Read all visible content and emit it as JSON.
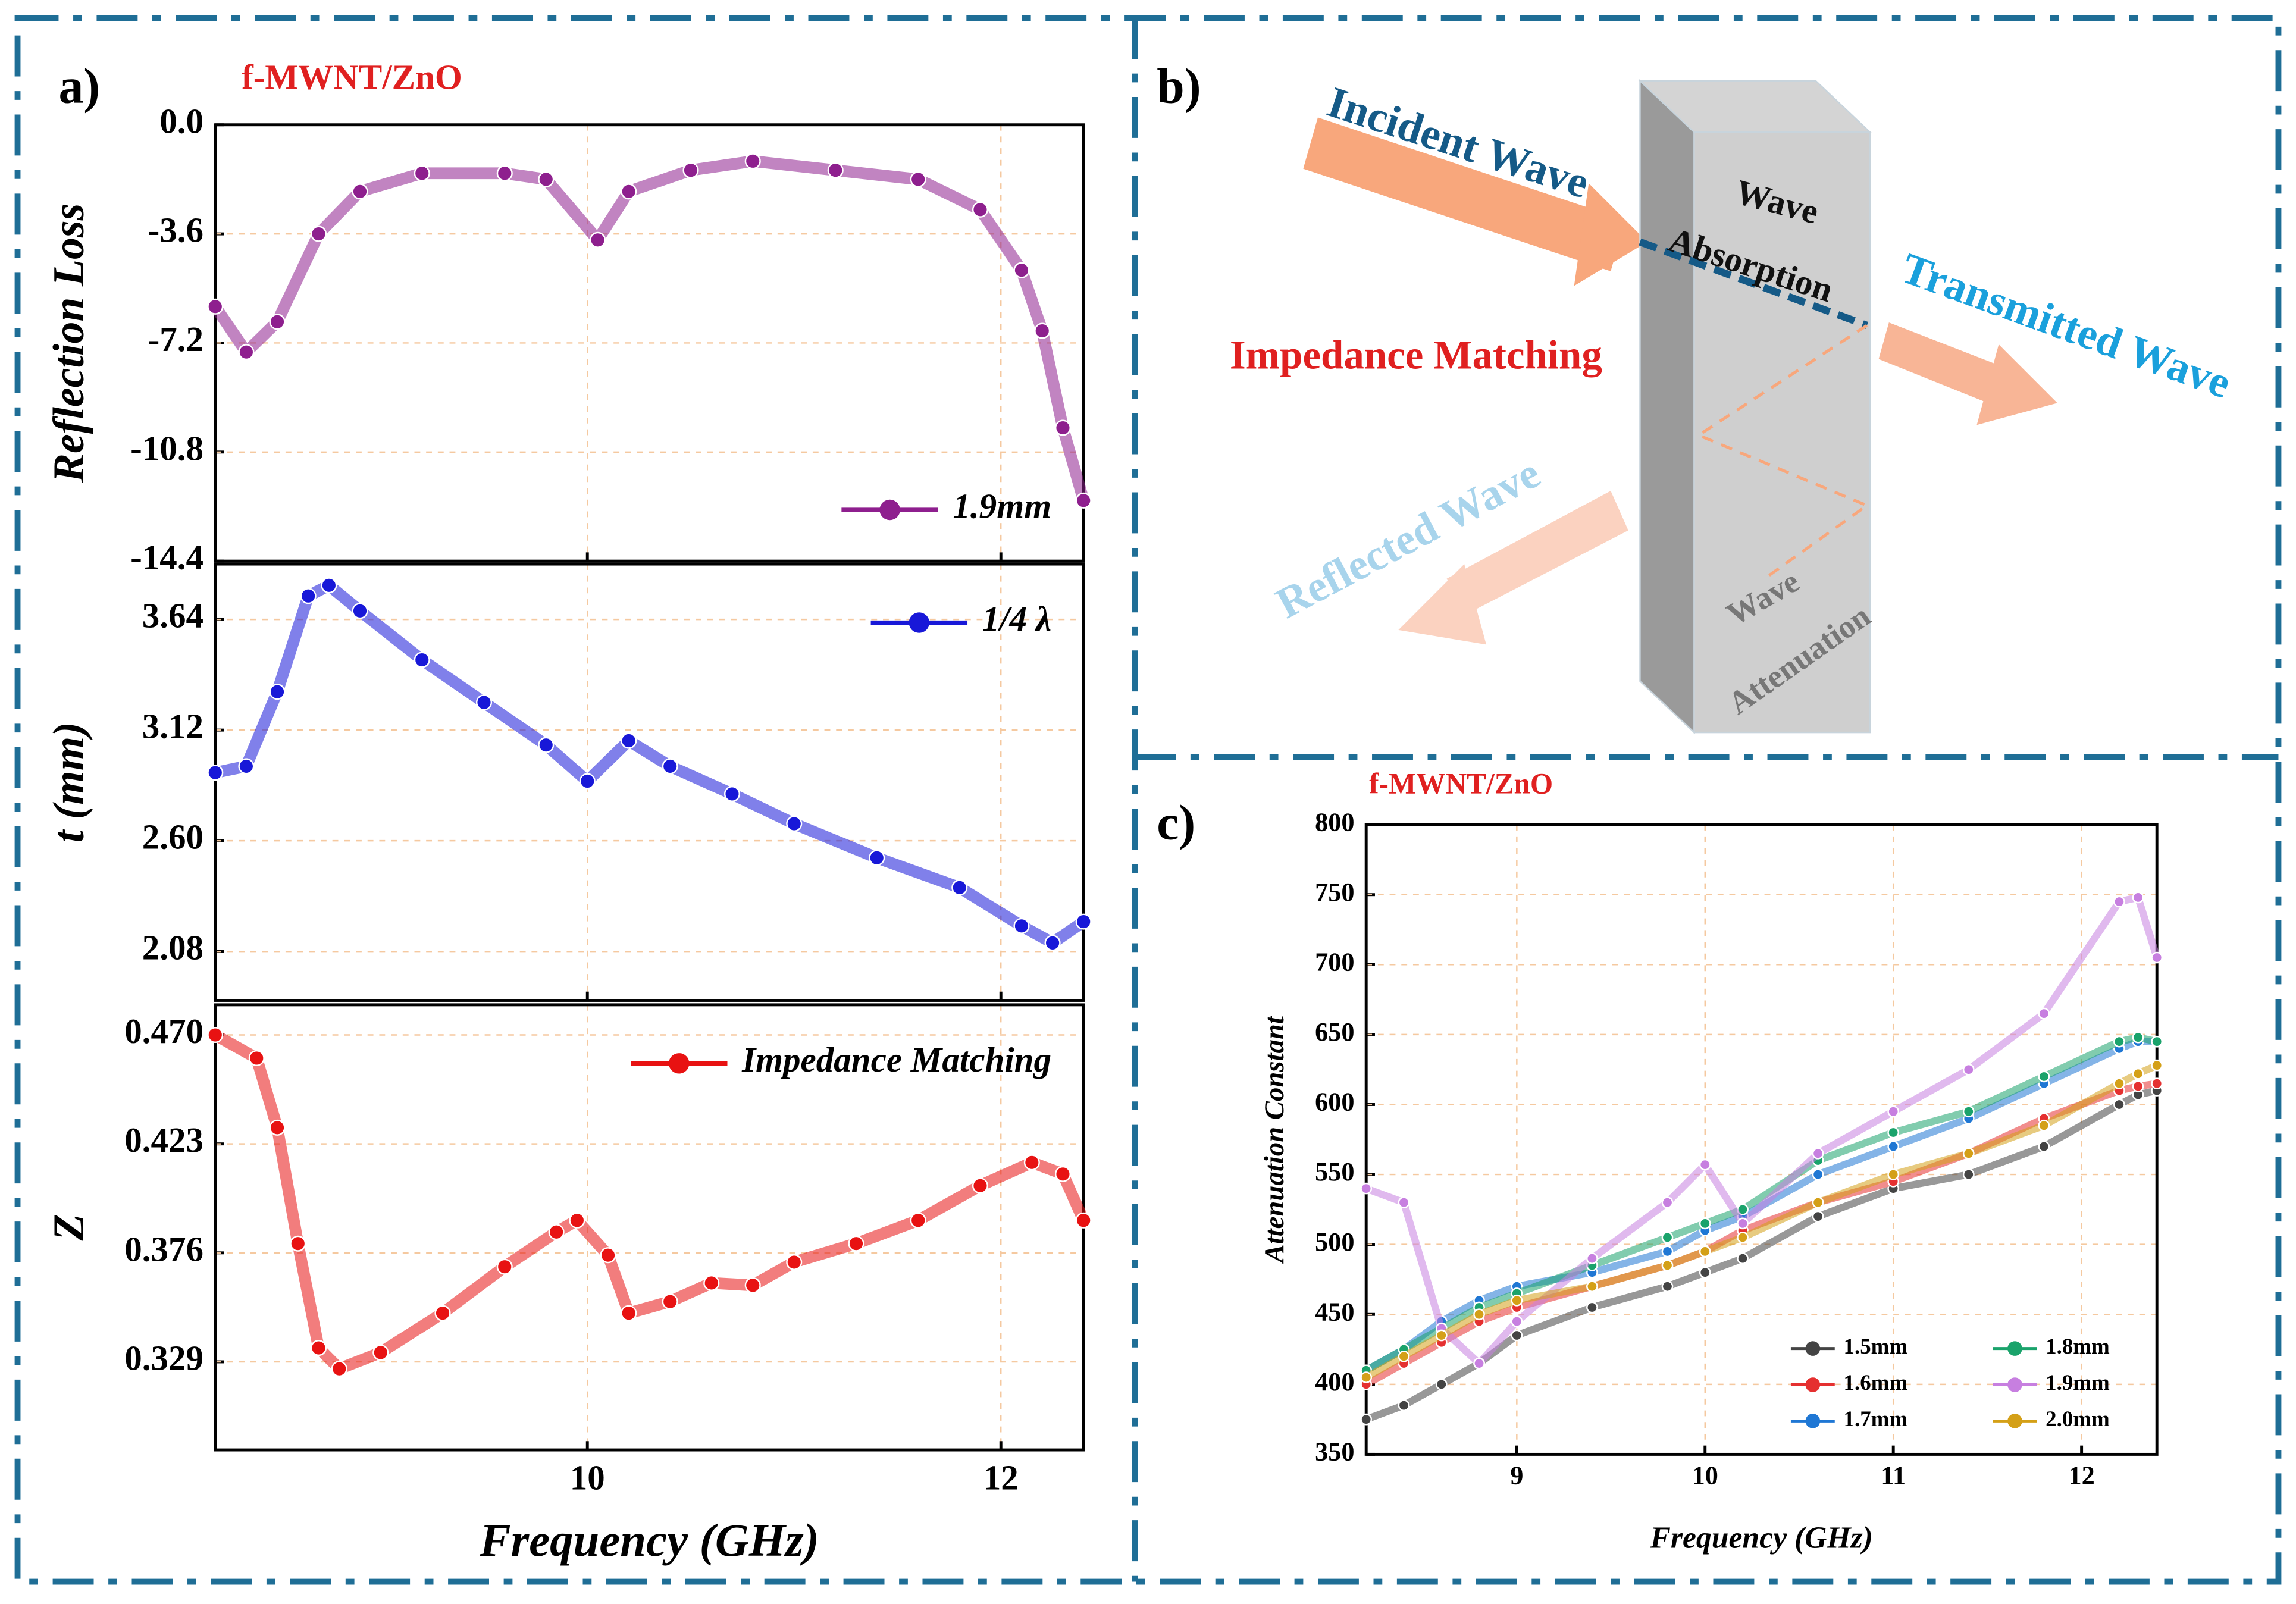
{
  "chart_data": [
    {
      "type": "line",
      "panel_label": "a)",
      "title": "f-MWNT/ZnO",
      "ylabel": "Reflection Loss",
      "x": [
        8.2,
        8.35,
        8.5,
        8.7,
        8.9,
        9.2,
        9.6,
        9.8,
        10.05,
        10.2,
        10.5,
        10.8,
        11.2,
        11.6,
        11.9,
        12.1,
        12.2,
        12.3,
        12.4
      ],
      "xlim": [
        8.2,
        12.4
      ],
      "ylim": [
        -14.4,
        0
      ],
      "yticks": [
        {
          "value": 0,
          "label": "0.0"
        },
        -3.6,
        -7.2,
        -10.8,
        -14.4
      ],
      "grid": true,
      "legend_loc": "lower right",
      "series": [
        {
          "name": "1.9mm",
          "color": "#8e1f8e",
          "values": [
            -6,
            -7.5,
            -6.5,
            -3.6,
            -2.2,
            -1.6,
            -1.6,
            -1.8,
            -3.8,
            -2.2,
            -1.5,
            -1.2,
            -1.5,
            -1.8,
            -2.8,
            -4.8,
            -6.8,
            -10,
            -12.4
          ]
        }
      ]
    },
    {
      "type": "line",
      "ylabel": "t (mm)",
      "x": [
        8.2,
        8.35,
        8.5,
        8.65,
        8.75,
        8.9,
        9.2,
        9.5,
        9.8,
        10.0,
        10.2,
        10.4,
        10.7,
        11.0,
        11.4,
        11.8,
        12.1,
        12.25,
        12.4
      ],
      "xlim": [
        8.2,
        12.4
      ],
      "ylim": [
        1.85,
        3.9
      ],
      "yticks": [
        3.64,
        3.12,
        {
          "value": 2.6,
          "label": "2.60"
        },
        2.08
      ],
      "grid": true,
      "legend_loc": "upper right",
      "series": [
        {
          "name": "1/4 λ",
          "color": "#1818d8",
          "values": [
            2.92,
            2.95,
            3.3,
            3.75,
            3.8,
            3.68,
            3.45,
            3.25,
            3.05,
            2.88,
            3.07,
            2.95,
            2.82,
            2.68,
            2.52,
            2.38,
            2.2,
            2.12,
            2.22
          ]
        }
      ]
    },
    {
      "type": "line",
      "ylabel": "Z",
      "xlabel": "Frequency (GHz)",
      "x": [
        8.2,
        8.4,
        8.5,
        8.6,
        8.7,
        8.8,
        9.0,
        9.3,
        9.6,
        9.85,
        9.95,
        10.1,
        10.2,
        10.4,
        10.6,
        10.8,
        11.0,
        11.3,
        11.6,
        11.9,
        12.15,
        12.3,
        12.4
      ],
      "xlim": [
        8.2,
        12.4
      ],
      "ylim": [
        0.291,
        0.483
      ],
      "xticks": [
        10,
        12
      ],
      "yticks": [
        {
          "value": 0.47,
          "label": "0.470"
        },
        0.423,
        0.376,
        0.329
      ],
      "grid": true,
      "legend_loc": "upper right",
      "series": [
        {
          "name": "Impedance Matching",
          "color": "#e81212",
          "values": [
            0.47,
            0.46,
            0.43,
            0.38,
            0.335,
            0.326,
            0.333,
            0.35,
            0.37,
            0.385,
            0.39,
            0.375,
            0.35,
            0.355,
            0.363,
            0.362,
            0.372,
            0.38,
            0.39,
            0.405,
            0.415,
            0.41,
            0.39
          ]
        }
      ]
    },
    {
      "type": "line",
      "panel_label": "c)",
      "title": "f-MWNT/ZnO",
      "ylabel": "Attenuation Constant",
      "xlabel": "Frequency (GHz)",
      "x": [
        8.2,
        8.4,
        8.6,
        8.8,
        9.0,
        9.4,
        9.8,
        10.0,
        10.2,
        10.6,
        11.0,
        11.4,
        11.8,
        12.2,
        12.3,
        12.4
      ],
      "xlim": [
        8.2,
        12.4
      ],
      "ylim": [
        350,
        800
      ],
      "xticks": [
        9,
        10,
        11,
        12
      ],
      "yticks": [
        350,
        400,
        450,
        500,
        550,
        600,
        650,
        700,
        750,
        800
      ],
      "grid": true,
      "legend_loc": "lower right",
      "legend_columns": 2,
      "series": [
        {
          "name": "1.5mm",
          "color": "#444444",
          "values": [
            375,
            385,
            400,
            415,
            435,
            455,
            470,
            480,
            490,
            520,
            540,
            550,
            570,
            600,
            607,
            610
          ]
        },
        {
          "name": "1.6mm",
          "color": "#e53030",
          "values": [
            400,
            415,
            430,
            445,
            455,
            470,
            485,
            495,
            510,
            530,
            545,
            565,
            590,
            610,
            613,
            615
          ]
        },
        {
          "name": "1.7mm",
          "color": "#1f77d4",
          "values": [
            410,
            425,
            445,
            460,
            470,
            480,
            495,
            510,
            520,
            550,
            570,
            590,
            615,
            640,
            645,
            645
          ]
        },
        {
          "name": "1.8mm",
          "color": "#1aa36b",
          "values": [
            410,
            425,
            440,
            455,
            465,
            485,
            505,
            515,
            525,
            560,
            580,
            595,
            620,
            645,
            648,
            645
          ]
        },
        {
          "name": "1.9mm",
          "color": "#c77fe0",
          "values": [
            540,
            530,
            440,
            415,
            445,
            490,
            530,
            557,
            515,
            565,
            595,
            625,
            665,
            745,
            748,
            705
          ]
        },
        {
          "name": "2.0mm",
          "color": "#d4a017",
          "values": [
            405,
            420,
            435,
            450,
            460,
            470,
            485,
            495,
            505,
            530,
            550,
            565,
            585,
            615,
            622,
            628
          ]
        }
      ]
    }
  ],
  "diagram": {
    "label": "b)",
    "incident": "Incident Wave",
    "absorption_1": "Wave",
    "absorption_2": "Absorption",
    "transmitted": "Transmitted Wave",
    "impedance": "Impedance Matching",
    "reflected": "Reflected Wave",
    "attenuation_1": "Wave",
    "attenuation_2": "Attenuation"
  }
}
